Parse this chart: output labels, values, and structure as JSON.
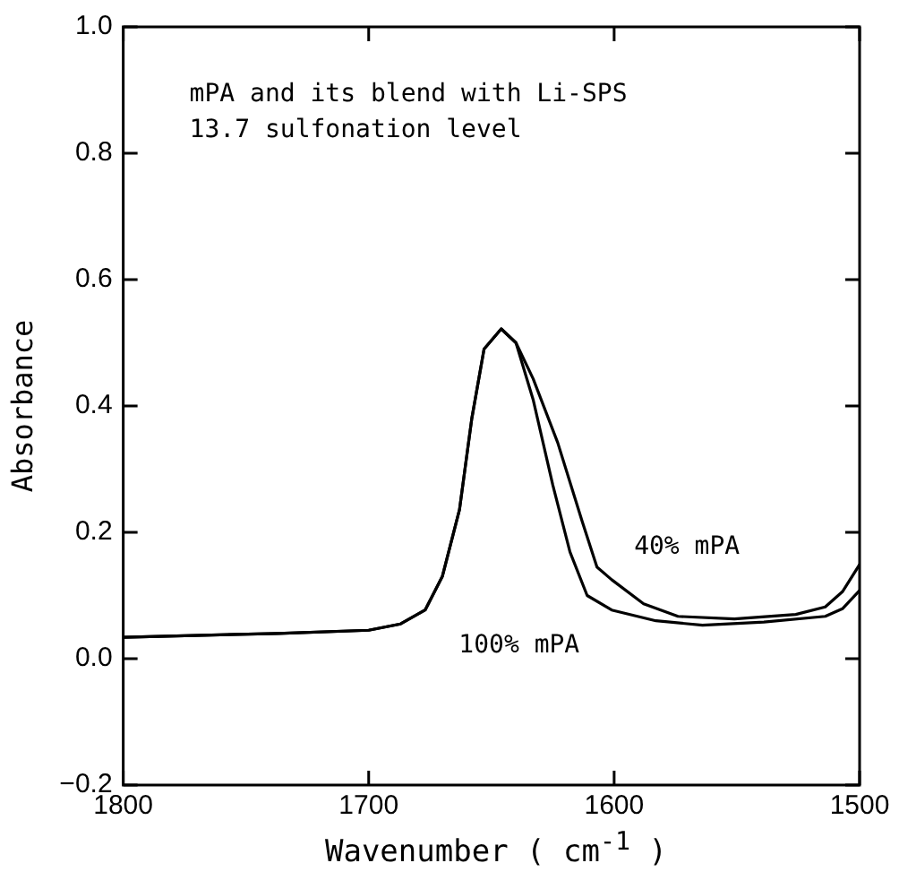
{
  "chart_data": {
    "type": "line",
    "xlabel": "Wavenumber ( cm$^{-1}$ )",
    "ylabel": "Absorbance",
    "xlim": [
      1800,
      1500
    ],
    "xticks": [
      1800,
      1700,
      1600,
      1500
    ],
    "ylim": [
      -0.2,
      1.0
    ],
    "yticks": [
      {
        "value": -0.2,
        "label": "−0.2"
      },
      {
        "value": 0,
        "label": "0.0"
      },
      {
        "value": 0.2,
        "label": "0.2"
      },
      {
        "value": 0.4,
        "label": "0.4"
      },
      {
        "value": 0.6,
        "label": "0.6"
      },
      {
        "value": 0.8,
        "label": "0.8"
      },
      {
        "value": 1.0,
        "label": "1.0"
      }
    ],
    "grid": false,
    "legend": false,
    "marker": "none",
    "line_style": "solid",
    "annotations": [
      "mPA and its blend with Li-SPS",
      "13.7 sulfonation level"
    ],
    "series": [
      {
        "name": "100% mPA",
        "color": "#000000",
        "x": [
          1800,
          1737,
          1700,
          1687,
          1677,
          1670,
          1663,
          1658,
          1653,
          1646,
          1640,
          1633,
          1625,
          1618,
          1611,
          1601,
          1583,
          1564,
          1539,
          1514,
          1507,
          1500
        ],
        "values": [
          0.034,
          0.04,
          0.045,
          0.055,
          0.077,
          0.13,
          0.236,
          0.38,
          0.49,
          0.522,
          0.5,
          0.41,
          0.275,
          0.169,
          0.1,
          0.077,
          0.06,
          0.053,
          0.058,
          0.067,
          0.079,
          0.108
        ]
      },
      {
        "name": "40% mPA",
        "color": "#000000",
        "x": [
          1800,
          1737,
          1700,
          1687,
          1677,
          1670,
          1663,
          1658,
          1653,
          1646,
          1640,
          1633,
          1623,
          1613,
          1607,
          1601,
          1588,
          1574,
          1551,
          1526,
          1514,
          1507,
          1500
        ],
        "values": [
          0.034,
          0.04,
          0.045,
          0.055,
          0.077,
          0.13,
          0.236,
          0.38,
          0.49,
          0.522,
          0.5,
          0.443,
          0.342,
          0.217,
          0.145,
          0.125,
          0.087,
          0.067,
          0.063,
          0.07,
          0.082,
          0.106,
          0.149
        ]
      }
    ]
  }
}
